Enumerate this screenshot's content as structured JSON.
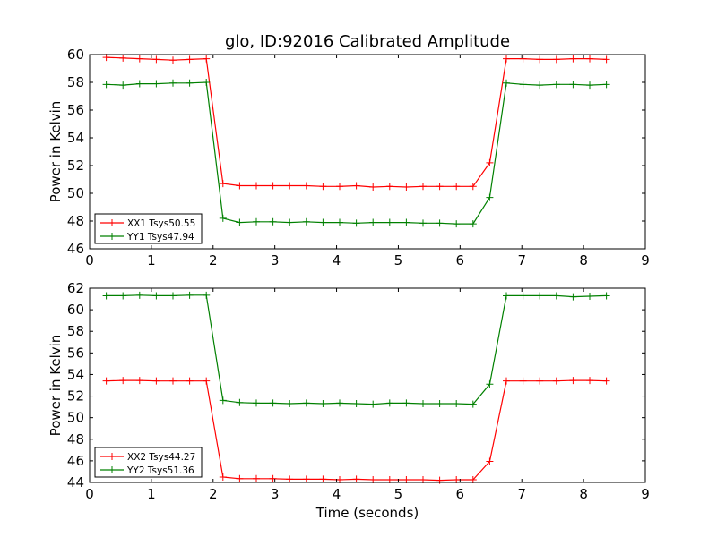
{
  "title": "glo, ID:92016 Calibrated Amplitude",
  "colors": {
    "xx": "#ff0000",
    "yy": "#008000"
  },
  "chart_data": [
    {
      "type": "line",
      "ylabel": "Power in Kelvin",
      "xlabel": "",
      "xlim": [
        0,
        9
      ],
      "ylim": [
        46,
        60
      ],
      "xticks": [
        0,
        1,
        2,
        3,
        4,
        5,
        6,
        7,
        8,
        9
      ],
      "yticks": [
        46,
        48,
        50,
        52,
        54,
        56,
        58,
        60
      ],
      "legend": "lower-left",
      "x": [
        0.27,
        0.54,
        0.81,
        1.08,
        1.35,
        1.62,
        1.89,
        2.16,
        2.43,
        2.7,
        2.97,
        3.24,
        3.51,
        3.78,
        4.05,
        4.32,
        4.59,
        4.86,
        5.13,
        5.4,
        5.67,
        5.94,
        6.21,
        6.48,
        6.75,
        7.02,
        7.29,
        7.56,
        7.83,
        8.1,
        8.37
      ],
      "series": [
        {
          "name": "XX1 Tsys50.55",
          "color": "#ff0000",
          "values": [
            59.8,
            59.75,
            59.7,
            59.65,
            59.6,
            59.65,
            59.7,
            50.7,
            50.55,
            50.55,
            50.55,
            50.55,
            50.55,
            50.5,
            50.5,
            50.55,
            50.45,
            50.5,
            50.45,
            50.5,
            50.5,
            50.5,
            50.5,
            52.2,
            59.7,
            59.7,
            59.65,
            59.65,
            59.7,
            59.7,
            59.65
          ]
        },
        {
          "name": "YY1 Tsys47.94",
          "color": "#008000",
          "values": [
            57.85,
            57.8,
            57.9,
            57.9,
            57.95,
            57.95,
            58.0,
            48.2,
            47.9,
            47.95,
            47.95,
            47.9,
            47.95,
            47.9,
            47.9,
            47.85,
            47.9,
            47.9,
            47.9,
            47.85,
            47.85,
            47.8,
            47.8,
            49.7,
            57.95,
            57.85,
            57.8,
            57.85,
            57.85,
            57.8,
            57.85
          ]
        }
      ]
    },
    {
      "type": "line",
      "ylabel": "Power in Kelvin",
      "xlabel": "Time (seconds)",
      "xlim": [
        0,
        9
      ],
      "ylim": [
        44,
        62
      ],
      "xticks": [
        0,
        1,
        2,
        3,
        4,
        5,
        6,
        7,
        8,
        9
      ],
      "yticks": [
        44,
        46,
        48,
        50,
        52,
        54,
        56,
        58,
        60,
        62
      ],
      "legend": "lower-left",
      "x": [
        0.27,
        0.54,
        0.81,
        1.08,
        1.35,
        1.62,
        1.89,
        2.16,
        2.43,
        2.7,
        2.97,
        3.24,
        3.51,
        3.78,
        4.05,
        4.32,
        4.59,
        4.86,
        5.13,
        5.4,
        5.67,
        5.94,
        6.21,
        6.48,
        6.75,
        7.02,
        7.29,
        7.56,
        7.83,
        8.1,
        8.37
      ],
      "series": [
        {
          "name": "XX2 Tsys44.27",
          "color": "#ff0000",
          "values": [
            53.4,
            53.45,
            53.45,
            53.4,
            53.4,
            53.4,
            53.4,
            44.5,
            44.35,
            44.35,
            44.35,
            44.3,
            44.3,
            44.3,
            44.25,
            44.3,
            44.25,
            44.25,
            44.25,
            44.25,
            44.2,
            44.25,
            44.25,
            45.95,
            53.4,
            53.4,
            53.4,
            53.4,
            53.45,
            53.45,
            53.4
          ]
        },
        {
          "name": "YY2 Tsys51.36",
          "color": "#008000",
          "values": [
            61.3,
            61.3,
            61.35,
            61.3,
            61.3,
            61.35,
            61.35,
            51.6,
            51.4,
            51.35,
            51.35,
            51.3,
            51.35,
            51.3,
            51.35,
            51.3,
            51.25,
            51.35,
            51.35,
            51.3,
            51.3,
            51.3,
            51.25,
            53.1,
            61.3,
            61.3,
            61.3,
            61.3,
            61.2,
            61.25,
            61.3
          ]
        }
      ]
    }
  ]
}
